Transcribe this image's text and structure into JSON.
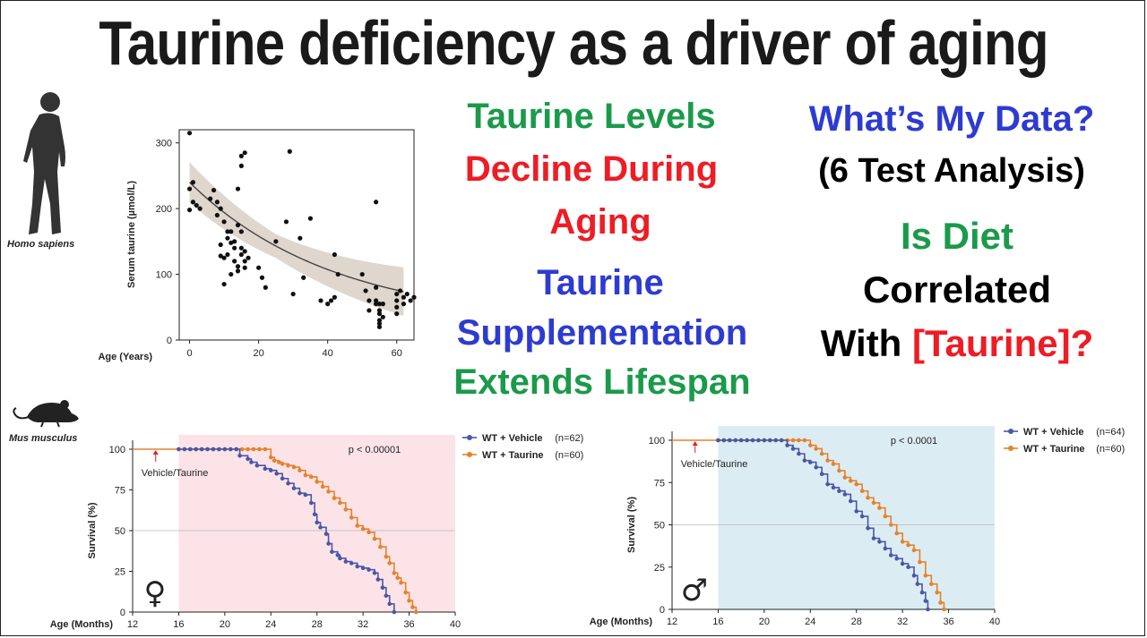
{
  "title": "Taurine deficiency as a driver of aging",
  "middle_text": {
    "line1": "Taurine Levels",
    "line2": "Decline During",
    "line3": "Aging",
    "line4": "Taurine",
    "line5": "Supplementation",
    "line6": "Extends Lifespan"
  },
  "right_text": {
    "line1": "What’s My Data?",
    "line2": "(6 Test Analysis)",
    "line3": "Is Diet",
    "line4": "Correlated",
    "line5_prefix": "With ",
    "line5_highlight": "[Taurine]?"
  },
  "colors": {
    "green": "#1a9a4a",
    "red": "#ee1c24",
    "blue": "#2e3bd0",
    "vehicle": "#4a57a6",
    "taurine": "#e5822a",
    "female_bg": "#fbe3e8",
    "male_bg": "#dcecf3"
  },
  "species": {
    "human": "Homo sapiens",
    "mouse": "Mus musculus"
  },
  "chart_data": [
    {
      "type": "scatter",
      "ylabel": "Serum taurine (µmol/L)",
      "xlabel": "Age (Years)",
      "xlim": [
        -3,
        65
      ],
      "ylim": [
        0,
        320
      ],
      "xticks": [
        0,
        20,
        40,
        60
      ],
      "yticks": [
        0,
        100,
        200,
        300
      ],
      "fit_curve": {
        "a": 215,
        "k": 0.024,
        "band": 18
      },
      "points": [
        [
          0,
          315
        ],
        [
          0,
          198
        ],
        [
          1,
          240
        ],
        [
          0,
          230
        ],
        [
          1,
          210
        ],
        [
          2,
          205
        ],
        [
          3,
          200
        ],
        [
          6,
          215
        ],
        [
          7,
          228
        ],
        [
          8,
          210
        ],
        [
          8,
          190
        ],
        [
          9,
          200
        ],
        [
          9,
          128
        ],
        [
          9,
          145
        ],
        [
          10,
          125
        ],
        [
          10,
          85
        ],
        [
          10,
          180
        ],
        [
          11,
          165
        ],
        [
          11,
          130
        ],
        [
          11,
          155
        ],
        [
          12,
          100
        ],
        [
          12,
          148
        ],
        [
          12,
          165
        ],
        [
          13,
          150
        ],
        [
          13,
          140
        ],
        [
          13,
          120
        ],
        [
          14,
          112
        ],
        [
          14,
          175
        ],
        [
          14,
          230
        ],
        [
          14,
          105
        ],
        [
          15,
          280
        ],
        [
          15,
          265
        ],
        [
          15,
          165
        ],
        [
          15,
          140
        ],
        [
          15,
          130
        ],
        [
          16,
          135
        ],
        [
          16,
          120
        ],
        [
          16,
          110
        ],
        [
          16,
          285
        ],
        [
          17,
          125
        ],
        [
          20,
          110
        ],
        [
          21,
          95
        ],
        [
          22,
          80
        ],
        [
          25,
          150
        ],
        [
          28,
          180
        ],
        [
          29,
          287
        ],
        [
          30,
          70
        ],
        [
          32,
          155
        ],
        [
          33,
          95
        ],
        [
          35,
          185
        ],
        [
          38,
          60
        ],
        [
          40,
          55
        ],
        [
          41,
          60
        ],
        [
          42,
          65
        ],
        [
          42,
          130
        ],
        [
          43,
          100
        ],
        [
          50,
          100
        ],
        [
          51,
          75
        ],
        [
          52,
          60
        ],
        [
          52,
          45
        ],
        [
          54,
          210
        ],
        [
          54,
          80
        ],
        [
          54,
          60
        ],
        [
          54,
          55
        ],
        [
          55,
          40
        ],
        [
          55,
          30
        ],
        [
          55,
          25
        ],
        [
          55,
          45
        ],
        [
          55,
          55
        ],
        [
          55,
          20
        ],
        [
          56,
          35
        ],
        [
          56,
          55
        ],
        [
          60,
          70
        ],
        [
          60,
          60
        ],
        [
          60,
          50
        ],
        [
          60,
          40
        ],
        [
          61,
          75
        ],
        [
          62,
          55
        ],
        [
          62,
          65
        ],
        [
          63,
          70
        ],
        [
          64,
          60
        ],
        [
          65,
          65
        ]
      ]
    },
    {
      "type": "line",
      "sex": "female",
      "symbol": "♀",
      "xlabel": "Age (Months)",
      "ylabel": "Survival (%)",
      "xlim": [
        12,
        40
      ],
      "ylim": [
        0,
        100
      ],
      "xticks": [
        12,
        16,
        20,
        24,
        28,
        32,
        36,
        40
      ],
      "yticks": [
        0,
        25,
        50,
        75,
        100
      ],
      "annotation": "Vehicle/Taurine",
      "arrow_x": 14,
      "pvalue": "p < 0.00001",
      "series": [
        {
          "name": "WT + Vehicle",
          "n": "(n=62)",
          "x": [
            16,
            16.5,
            17,
            17.5,
            18,
            18.5,
            19,
            19.5,
            20,
            20.5,
            21,
            21.3,
            22,
            22.3,
            22.8,
            23.5,
            24,
            24.5,
            25,
            25.5,
            26,
            26.5,
            27,
            27.5,
            27.8,
            28,
            28.3,
            28.8,
            29,
            29.3,
            29.8,
            30,
            30.5,
            31,
            31.5,
            32,
            32.5,
            33,
            33.3,
            33.7,
            34,
            34.3,
            34.7
          ],
          "y": [
            100,
            100,
            100,
            100,
            100,
            100,
            100,
            100,
            100,
            100,
            100,
            96,
            94,
            92,
            90,
            88,
            87,
            85,
            82,
            79,
            76,
            73,
            72,
            67,
            60,
            55,
            52,
            48,
            42,
            37,
            35,
            33,
            31,
            30,
            28,
            27,
            26,
            24,
            20,
            15,
            10,
            5,
            0
          ]
        },
        {
          "name": "WT + Taurine",
          "n": "(n=60)",
          "x": [
            16,
            16.5,
            17,
            17.5,
            18,
            18.5,
            19,
            19.5,
            20,
            20.5,
            21,
            21.5,
            22,
            22.5,
            23,
            23.5,
            24,
            24.3,
            24.7,
            25,
            25.5,
            26,
            26.5,
            27,
            27.5,
            28,
            28.5,
            29,
            29.5,
            30,
            30.5,
            31,
            31.5,
            32,
            32.5,
            33,
            33.5,
            34,
            34.3,
            34.7,
            35,
            35.3,
            35.7,
            36,
            36.3,
            36.6
          ],
          "y": [
            100,
            100,
            100,
            100,
            100,
            100,
            100,
            100,
            100,
            100,
            100,
            100,
            100,
            100,
            100,
            100,
            95,
            93,
            92,
            91,
            90,
            89,
            87,
            84,
            83,
            80,
            77,
            74,
            70,
            67,
            63,
            58,
            53,
            51,
            49,
            45,
            40,
            34,
            30,
            24,
            21,
            18,
            12,
            7,
            3,
            0
          ]
        }
      ]
    },
    {
      "type": "line",
      "sex": "male",
      "symbol": "♂",
      "xlabel": "Age (Months)",
      "ylabel": "Survival (%)",
      "xlim": [
        12,
        40
      ],
      "ylim": [
        0,
        100
      ],
      "xticks": [
        12,
        16,
        20,
        24,
        28,
        32,
        36,
        40
      ],
      "yticks": [
        0,
        25,
        50,
        75,
        100
      ],
      "annotation": "Vehicle/Taurine",
      "arrow_x": 14,
      "pvalue": "p < 0.0001",
      "series": [
        {
          "name": "WT + Vehicle",
          "n": "(n=64)",
          "x": [
            16,
            16.5,
            17,
            17.5,
            18,
            18.5,
            19,
            19.5,
            20,
            20.5,
            21,
            21.5,
            22,
            22.5,
            23,
            23.5,
            24,
            24.5,
            25,
            25.5,
            26,
            26.5,
            27,
            27.5,
            28,
            28.5,
            29,
            29.5,
            30,
            30.5,
            31,
            31.5,
            32,
            32.5,
            33,
            33.3,
            33.7,
            34,
            34.2
          ],
          "y": [
            100,
            100,
            100,
            100,
            100,
            100,
            100,
            100,
            100,
            100,
            100,
            100,
            97,
            95,
            92,
            88,
            87,
            84,
            80,
            74,
            72,
            70,
            68,
            64,
            58,
            55,
            48,
            42,
            40,
            36,
            32,
            30,
            27,
            25,
            20,
            15,
            10,
            5,
            0
          ]
        },
        {
          "name": "WT + Taurine",
          "n": "(n=60)",
          "x": [
            16,
            16.5,
            17,
            17.5,
            18,
            18.5,
            19,
            19.5,
            20,
            20.5,
            21,
            21.5,
            22,
            22.5,
            23,
            23.5,
            24,
            24.5,
            25,
            25.5,
            26,
            26.5,
            27,
            27.5,
            28,
            28.5,
            29,
            29.5,
            30,
            30.5,
            31,
            31.5,
            32,
            32.5,
            33,
            33.5,
            34,
            34.5,
            35,
            35.3,
            35.6
          ],
          "y": [
            100,
            100,
            100,
            100,
            100,
            100,
            100,
            100,
            100,
            100,
            100,
            100,
            100,
            100,
            100,
            100,
            97,
            95,
            92,
            88,
            86,
            82,
            78,
            76,
            74,
            70,
            66,
            63,
            60,
            55,
            50,
            45,
            40,
            38,
            35,
            28,
            20,
            15,
            10,
            4,
            0
          ]
        }
      ]
    }
  ]
}
